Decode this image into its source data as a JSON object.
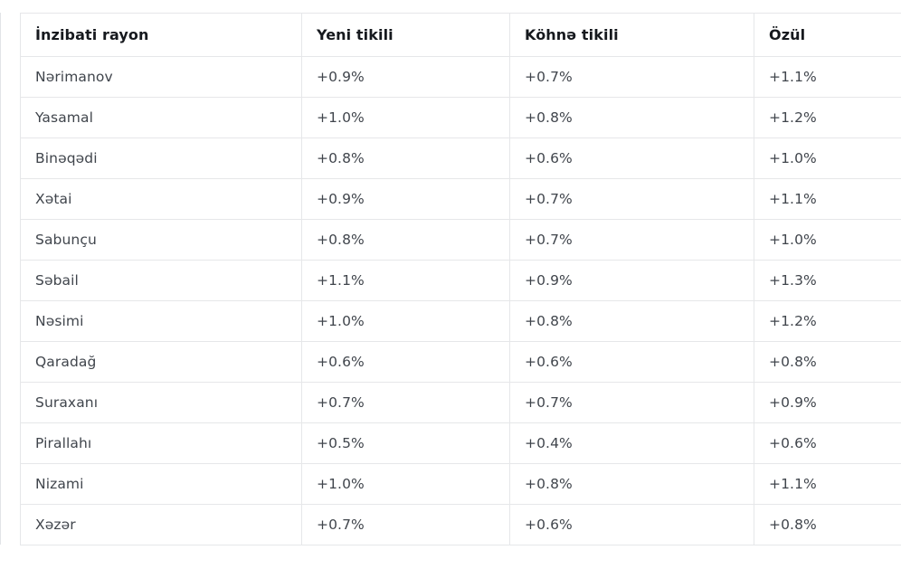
{
  "chart_data": {
    "type": "table",
    "columns": [
      "İnzibati rayon",
      "Yeni tikili",
      "Köhnə tikili",
      "Özül"
    ],
    "rows": [
      [
        "Nərimanov",
        "+0.9%",
        "+0.7%",
        "+1.1%"
      ],
      [
        "Yasamal",
        "+1.0%",
        "+0.8%",
        "+1.2%"
      ],
      [
        "Binəqədi",
        "+0.8%",
        "+0.6%",
        "+1.0%"
      ],
      [
        "Xətai",
        "+0.9%",
        "+0.7%",
        "+1.1%"
      ],
      [
        "Sabunçu",
        "+0.8%",
        "+0.7%",
        "+1.0%"
      ],
      [
        "Səbail",
        "+1.1%",
        "+0.9%",
        "+1.3%"
      ],
      [
        "Nəsimi",
        "+1.0%",
        "+0.8%",
        "+1.2%"
      ],
      [
        "Qaradağ",
        "+0.6%",
        "+0.6%",
        "+0.8%"
      ],
      [
        "Suraxanı",
        "+0.7%",
        "+0.7%",
        "+0.9%"
      ],
      [
        "Pirallahı",
        "+0.5%",
        "+0.4%",
        "+0.6%"
      ],
      [
        "Nizami",
        "+1.0%",
        "+0.8%",
        "+1.1%"
      ],
      [
        "Xəzər",
        "+0.7%",
        "+0.6%",
        "+0.8%"
      ]
    ],
    "layout": {
      "grid": true,
      "header_row": true,
      "header_bold": true
    }
  },
  "colors": {
    "header_text": "#16191e",
    "body_text": "#40454c",
    "border": "#e6e7e9",
    "background": "#ffffff"
  }
}
